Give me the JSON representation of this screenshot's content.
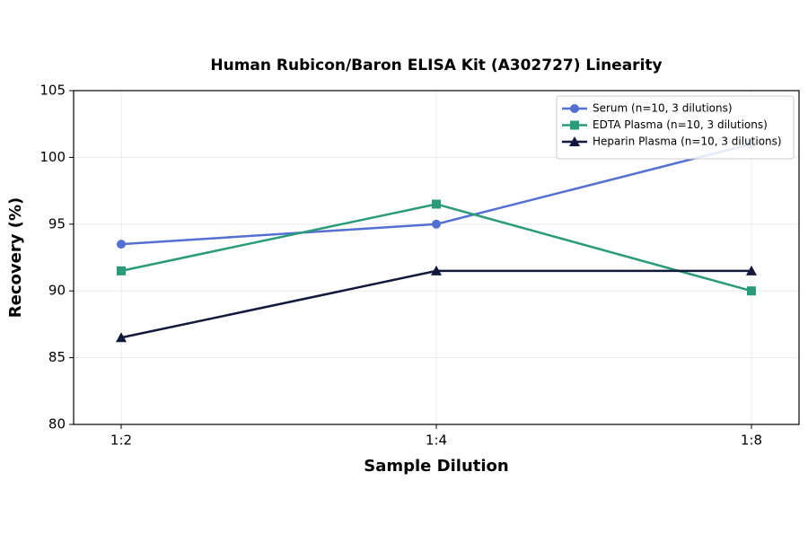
{
  "chart_data": {
    "type": "line",
    "title": "Human Rubicon/Baron ELISA Kit (A302727) Linearity",
    "x_label": "Sample Dilution",
    "y_label": "Recovery (%)",
    "categories": [
      "1:2",
      "1:4",
      "1:8"
    ],
    "series": [
      {
        "name": "Serum (n=10, 3 dilutions)",
        "color": "#5470d3",
        "marker": "circle",
        "values": [
          93.5,
          95,
          101
        ]
      },
      {
        "name": "EDTA Plasma (n=10, 3 dilutions)",
        "color": "#2a9b78",
        "marker": "square",
        "values": [
          91.5,
          96.5,
          90
        ]
      },
      {
        "name": "Heparin Plasma (n=10, 3 dilutions)",
        "color": "#111a3c",
        "marker": "triangle",
        "values": [
          86.5,
          91.5,
          91.5
        ]
      }
    ],
    "ylim": [
      80,
      105
    ],
    "yticks": [
      80,
      85,
      90,
      95,
      100,
      105
    ],
    "grid": true,
    "legend": "upper-right"
  }
}
